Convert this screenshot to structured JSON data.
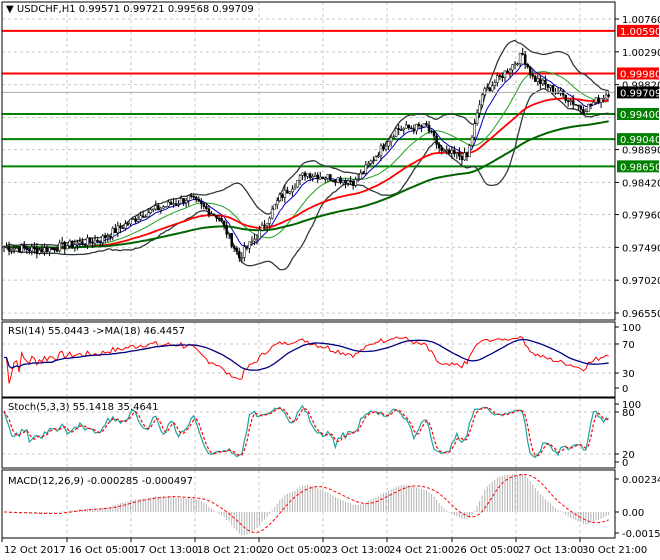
{
  "header": {
    "symbol": "USDCHF,H1",
    "ohlc": "0.99571 0.99721 0.99568 0.99709"
  },
  "indicators": {
    "rsi": "RSI(14) 55.0443  ->MA(18) 46.4457",
    "stoch": "Stoch(5,3,3) 55.1418 35.4641",
    "macd": "MACD(12,26,9) -0.000285 -0.000497"
  },
  "colors": {
    "up": "#000000",
    "red_level": "#ff0000",
    "green_level": "#008000",
    "bb": "#2f3a3a",
    "ma_red": "#ff0000",
    "ma_dkgreen": "#006400",
    "rsi": "#ff0000",
    "rsi_ma": "#000080",
    "stoch_main": "#20a0a0",
    "stoch_signal": "#ff0000",
    "macd_hist": "#b4b4b4"
  },
  "chart_data": {
    "type": "candlestick",
    "symbol": "USDCHF",
    "timeframe": "H1",
    "price_axis": {
      "max": 1.0076,
      "min": 0.9655,
      "ticks": [
        "1.00760",
        "1.00290",
        "0.99820",
        "0.98890",
        "0.98420",
        "0.97960",
        "0.97490",
        "0.97020",
        "0.96550"
      ]
    },
    "current_price": "0.99709",
    "levels": [
      {
        "value": 1.0059,
        "label": "1.00590",
        "color": "red"
      },
      {
        "value": 0.9998,
        "label": "0.99980",
        "color": "red"
      },
      {
        "value": 0.994,
        "label": "0.99400",
        "color": "green"
      },
      {
        "value": 0.9904,
        "label": "0.99040",
        "color": "green"
      },
      {
        "value": 0.9865,
        "label": "0.98650",
        "color": "green"
      }
    ],
    "close_keypoints": [
      [
        0,
        0.975
      ],
      [
        14,
        0.9745
      ],
      [
        38,
        0.976
      ],
      [
        55,
        0.9797
      ],
      [
        73,
        0.982
      ],
      [
        85,
        0.9792
      ],
      [
        93,
        0.9735
      ],
      [
        101,
        0.977
      ],
      [
        109,
        0.982
      ],
      [
        119,
        0.9855
      ],
      [
        139,
        0.9843
      ],
      [
        155,
        0.9918
      ],
      [
        167,
        0.9922
      ],
      [
        173,
        0.9885
      ],
      [
        183,
        0.9878
      ],
      [
        189,
        0.9968
      ],
      [
        199,
        1.0003
      ],
      [
        205,
        1.0025
      ],
      [
        209,
        0.9992
      ],
      [
        223,
        0.9962
      ],
      [
        229,
        0.9946
      ],
      [
        239,
        0.9971
      ]
    ],
    "x_labels": [
      "12 Oct 2017",
      "16 Oct 05:00",
      "17 Oct 13:00",
      "18 Oct 21:00",
      "20 Oct 05:00",
      "23 Oct 13:00",
      "24 Oct 21:00",
      "26 Oct 05:00",
      "27 Oct 13:00",
      "30 Oct 21:00"
    ],
    "rsi_axis": [
      "100",
      "70",
      "30",
      "0"
    ],
    "stoch_axis": [
      "100",
      "80",
      "20",
      "0"
    ],
    "macd_axis": [
      "0.002347",
      "0.00",
      "-0.001591"
    ]
  }
}
